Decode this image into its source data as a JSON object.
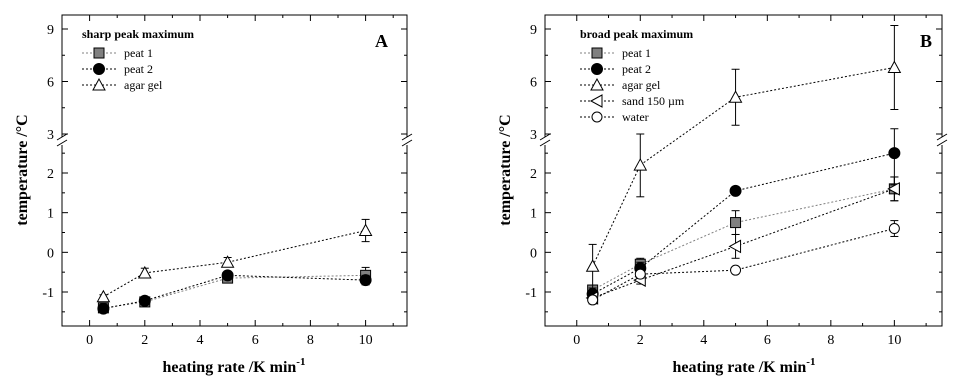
{
  "chart_data": [
    {
      "type": "line",
      "panel_label": "A",
      "legend_title": "sharp peak maximum",
      "legend_position": "top-left",
      "xlabel": "heating rate /K min",
      "xlabel_superscript": "-1",
      "ylabel": "temperature /°C",
      "x_ticks": [
        "0",
        "2",
        "4",
        "6",
        "8",
        "10"
      ],
      "y_ticks_lower": [
        "-1",
        "0",
        "1",
        "2"
      ],
      "y_ticks_upper": [
        "3",
        "6",
        "9"
      ],
      "xlim": [
        -1,
        11.5
      ],
      "y_axis_break": {
        "lower_range": [
          -1.75,
          2.55
        ],
        "upper_range": [
          2.6,
          10
        ]
      },
      "grid": false,
      "series": [
        {
          "name": "peat 1",
          "marker": "square",
          "color": "#808080",
          "line": "#808080",
          "points": [
            {
              "x": 0.5,
              "y": -1.4,
              "err": 0.05
            },
            {
              "x": 2,
              "y": -1.25,
              "err": 0.08
            },
            {
              "x": 5,
              "y": -0.65,
              "err": 0.08
            },
            {
              "x": 10,
              "y": -0.58,
              "err": 0.2
            }
          ]
        },
        {
          "name": "peat 2",
          "marker": "circle",
          "color": "#000000",
          "line": "#000000",
          "points": [
            {
              "x": 0.5,
              "y": -1.42,
              "err": 0.05
            },
            {
              "x": 2,
              "y": -1.22,
              "err": 0.08
            },
            {
              "x": 5,
              "y": -0.58,
              "err": 0.1
            },
            {
              "x": 10,
              "y": -0.7,
              "err": 0.12
            }
          ]
        },
        {
          "name": "agar gel",
          "marker": "triangle-up",
          "color": "#ffffff",
          "line": "#000000",
          "points": [
            {
              "x": 0.5,
              "y": -1.12,
              "err": 0.05
            },
            {
              "x": 2,
              "y": -0.52,
              "err": 0.12
            },
            {
              "x": 5,
              "y": -0.25,
              "err": 0.12
            },
            {
              "x": 10,
              "y": 0.55,
              "err": 0.28
            }
          ]
        }
      ]
    },
    {
      "type": "line",
      "panel_label": "B",
      "legend_title": "broad peak maximum",
      "legend_position": "top-left",
      "xlabel": "heating rate /K min",
      "xlabel_superscript": "-1",
      "ylabel": "temperature /°C",
      "x_ticks": [
        "0",
        "2",
        "4",
        "6",
        "8",
        "10"
      ],
      "y_ticks_lower": [
        "-1",
        "0",
        "1",
        "2"
      ],
      "y_ticks_upper": [
        "3",
        "6",
        "9"
      ],
      "xlim": [
        -1,
        11.5
      ],
      "y_axis_break": {
        "lower_range": [
          -1.75,
          2.55
        ],
        "upper_range": [
          2.6,
          10
        ]
      },
      "grid": false,
      "series": [
        {
          "name": "peat 1",
          "marker": "square",
          "color": "#808080",
          "line": "#808080",
          "points": [
            {
              "x": 0.5,
              "y": -0.95,
              "err": 0.1
            },
            {
              "x": 2,
              "y": -0.3,
              "err": 0.15
            },
            {
              "x": 5,
              "y": 0.75,
              "err": 0.3
            },
            {
              "x": 10,
              "y": 1.6,
              "err": 0.3
            }
          ]
        },
        {
          "name": "peat 2",
          "marker": "circle",
          "color": "#000000",
          "line": "#000000",
          "points": [
            {
              "x": 0.5,
              "y": -1.05,
              "err": 0.1
            },
            {
              "x": 2,
              "y": -0.4,
              "err": 0.15
            },
            {
              "x": 5,
              "y": 1.55,
              "err": 0.05
            },
            {
              "x": 10,
              "y": 2.5,
              "err": 0.8
            }
          ]
        },
        {
          "name": "agar gel",
          "marker": "triangle-up",
          "color": "#ffffff",
          "line": "#000000",
          "points": [
            {
              "x": 0.5,
              "y": -0.35,
              "err": 0.55
            },
            {
              "x": 2,
              "y": 2.2,
              "err": 0.8
            },
            {
              "x": 5,
              "y": 5.1,
              "err": 1.6
            },
            {
              "x": 10,
              "y": 6.8,
              "err": 2.4
            }
          ]
        },
        {
          "name": "sand 150 µm",
          "marker": "triangle-left",
          "color": "#ffffff",
          "line": "#000000",
          "points": [
            {
              "x": 0.5,
              "y": -1.15,
              "err": 0.1
            },
            {
              "x": 2,
              "y": -0.7,
              "err": 0.1
            },
            {
              "x": 5,
              "y": 0.15,
              "err": 0.3
            },
            {
              "x": 10,
              "y": 1.6,
              "err": 0.3
            }
          ]
        },
        {
          "name": "water",
          "marker": "circle-open",
          "color": "#ffffff",
          "line": "#000000",
          "points": [
            {
              "x": 0.5,
              "y": -1.2,
              "err": 0.1
            },
            {
              "x": 2,
              "y": -0.55,
              "err": 0.1
            },
            {
              "x": 5,
              "y": -0.45,
              "err": 0.05
            },
            {
              "x": 10,
              "y": 0.6,
              "err": 0.2
            }
          ]
        }
      ]
    }
  ]
}
